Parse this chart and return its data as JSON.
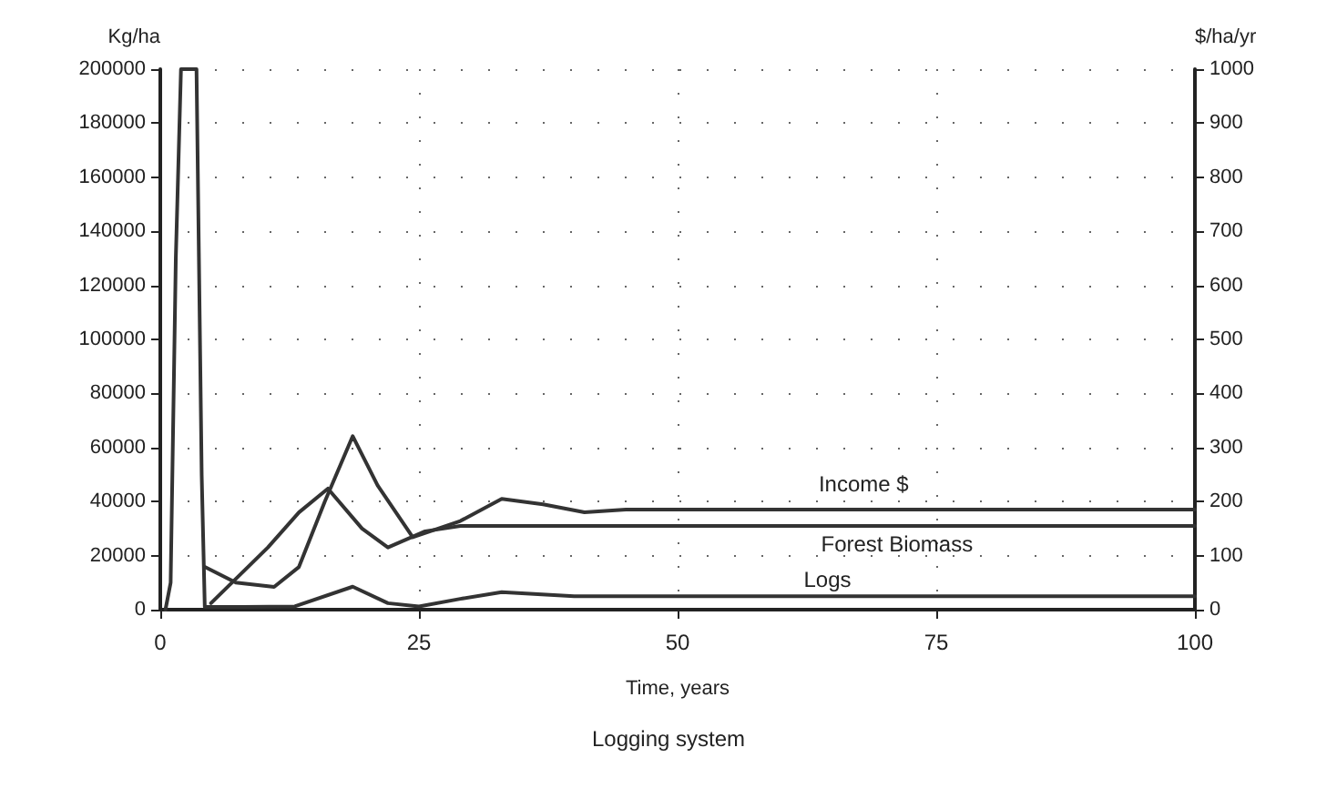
{
  "chart_data": {
    "type": "line",
    "title": "Logging system",
    "xlabel": "Time, years",
    "ylabel": "Kg/ha",
    "y2label": "$/ha/yr",
    "xlim": [
      0,
      100
    ],
    "xticks": [
      0,
      25,
      50,
      75,
      100
    ],
    "ylim": [
      0,
      200000
    ],
    "yticks": [
      0,
      20000,
      40000,
      60000,
      80000,
      100000,
      120000,
      140000,
      160000,
      180000,
      200000
    ],
    "y2lim": [
      0,
      1000
    ],
    "y2ticks": [
      0,
      100,
      200,
      300,
      400,
      500,
      600,
      700,
      800,
      900,
      1000
    ],
    "grid": true,
    "line_style": "solid",
    "marker": "none",
    "legend": false,
    "series": [
      {
        "name": "Income $",
        "color": "#333333",
        "axis": "y2",
        "x": [
          4.3,
          7.3,
          11,
          13.4,
          15.9,
          18.6,
          21,
          24.4,
          29,
          33,
          37,
          41,
          45,
          100
        ],
        "values": [
          79,
          50,
          42,
          79,
          200,
          321,
          230,
          134,
          164,
          205,
          195,
          180,
          185,
          185
        ]
      },
      {
        "name": "Forest Biomass",
        "color": "#333333",
        "x": [
          4.9,
          10.4,
          13.4,
          16.2,
          19.5,
          22,
          25.6,
          29,
          31,
          100
        ],
        "values": [
          2400,
          23000,
          36000,
          44800,
          30000,
          23000,
          29000,
          31000,
          31000,
          31000
        ]
      },
      {
        "name": "Logs",
        "color": "#333333",
        "x": [
          0.5,
          1,
          1.5,
          2,
          3,
          3.5,
          4,
          4.3,
          8,
          13,
          18.6,
          22,
          25,
          29,
          33,
          40,
          100
        ],
        "values": [
          0,
          10000,
          130000,
          200000,
          200000,
          200000,
          50000,
          1000,
          1000,
          1200,
          8500,
          2400,
          1200,
          4000,
          6500,
          5000,
          5000
        ]
      }
    ]
  }
}
